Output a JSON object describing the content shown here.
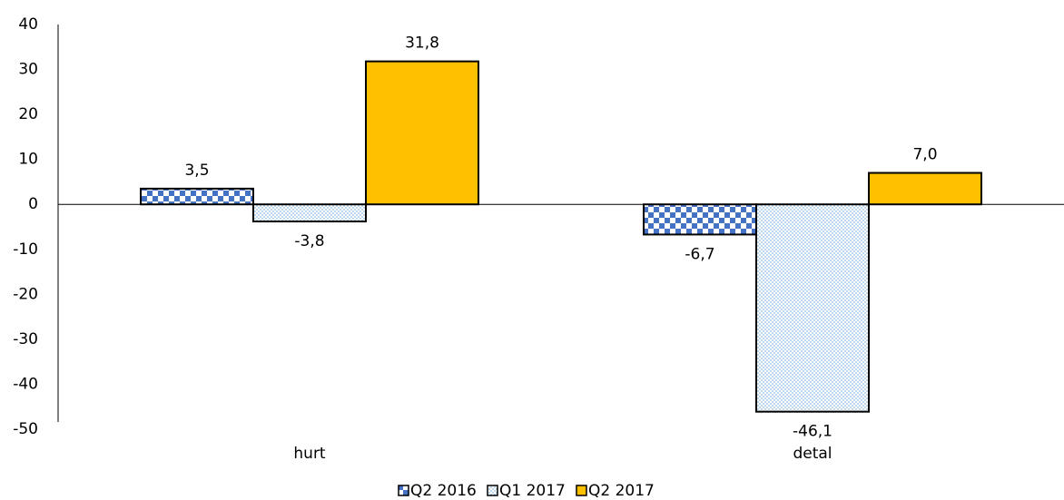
{
  "chart_data": {
    "type": "bar",
    "categories": [
      "hurt",
      "detal"
    ],
    "series": [
      {
        "name": "Q2 2016",
        "color": "#4472c4",
        "pattern": "checker",
        "values": [
          3.5,
          -6.7
        ],
        "value_labels": [
          "3,5",
          "-6,7"
        ]
      },
      {
        "name": "Q1 2017",
        "color": "#5b9bd5",
        "pattern": "dots",
        "values": [
          -3.8,
          -46.1
        ],
        "value_labels": [
          "-3,8",
          "-46,1"
        ]
      },
      {
        "name": "Q2 2017",
        "color": "#ffc000",
        "pattern": "solid",
        "values": [
          31.8,
          7.0
        ],
        "value_labels": [
          "31,8",
          "7,0"
        ]
      }
    ],
    "ylim": [
      -50,
      40
    ],
    "yticks": [
      -50,
      -40,
      -30,
      -20,
      -10,
      0,
      10,
      20,
      30,
      40
    ],
    "grid": false,
    "legend": "bottom"
  }
}
